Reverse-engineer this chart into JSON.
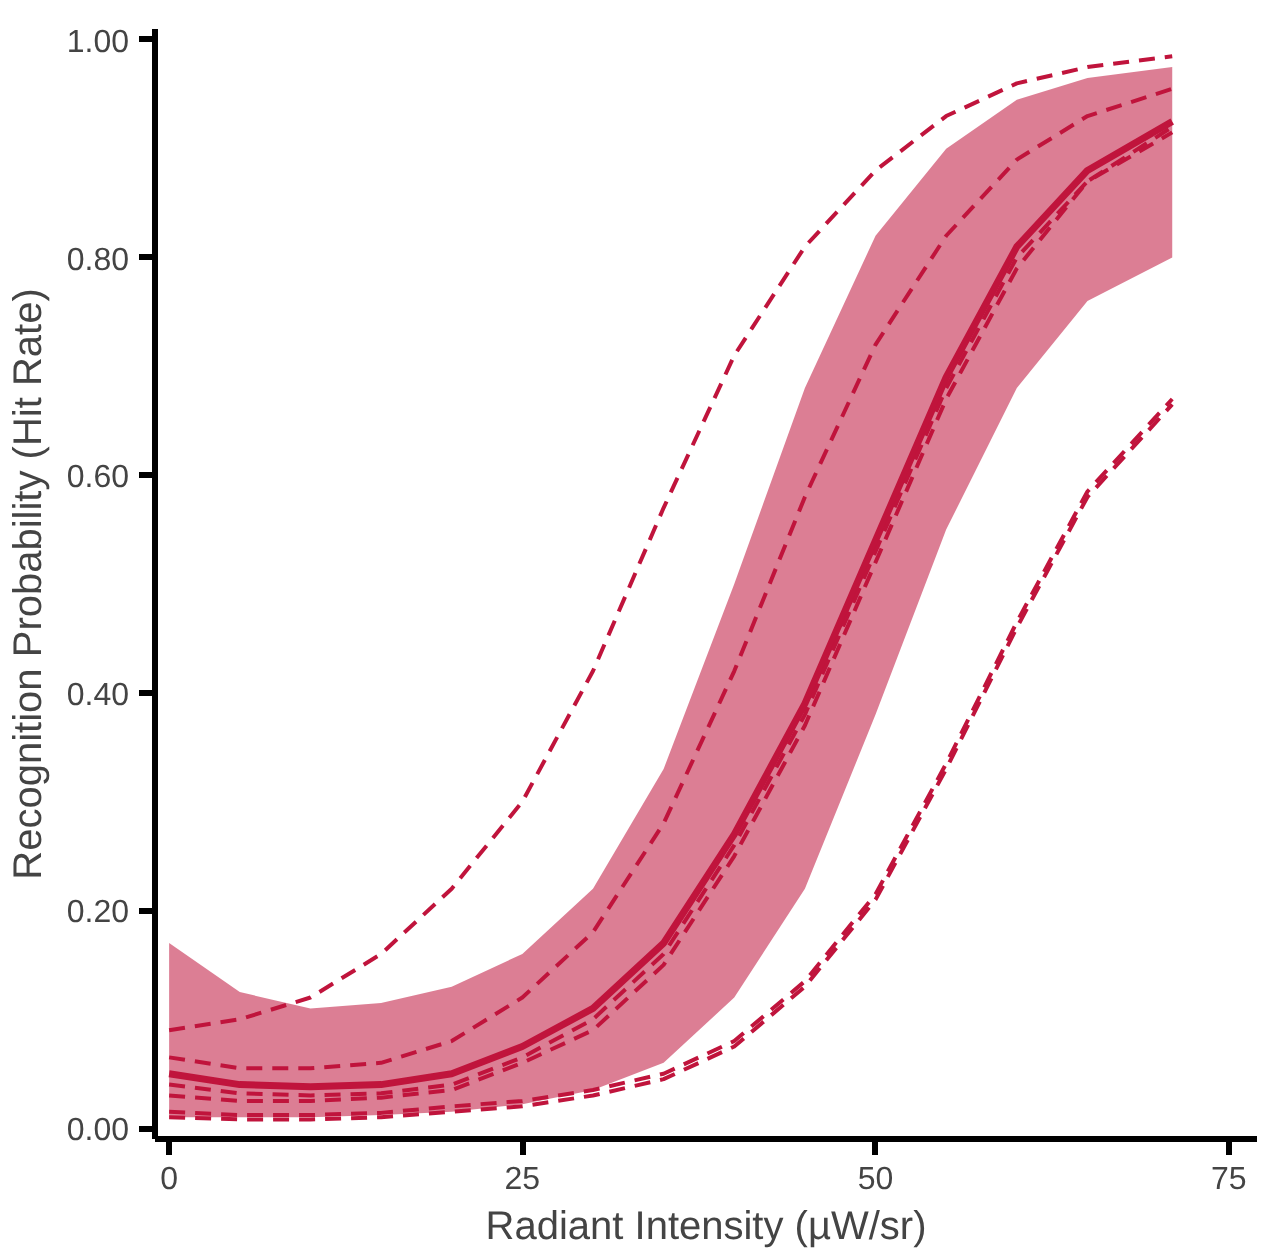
{
  "chart_data": {
    "type": "line",
    "xlabel": "Radiant Intensity (µW/sr)",
    "ylabel": "Recognition Probability (Hit Rate)",
    "x": [
      0,
      5,
      10,
      15,
      20,
      25,
      30,
      35,
      40,
      45,
      50,
      55,
      60,
      65,
      71
    ],
    "xlim": [
      -1,
      77
    ],
    "ylim": [
      -0.01,
      1.01
    ],
    "xticks": [
      0,
      25,
      50,
      75
    ],
    "yticks": [
      {
        "value": 0,
        "label": "0.00"
      },
      {
        "value": 0.2,
        "label": "0.20"
      },
      {
        "value": 0.4,
        "label": "0.40"
      },
      {
        "value": 0.6,
        "label": "0.60"
      },
      {
        "value": 0.8,
        "label": "0.80"
      },
      {
        "value": 1,
        "label": "1.00"
      }
    ],
    "grid": false,
    "series": [
      {
        "color": "#c0143c",
        "line_style": "solid",
        "values": [
          0.05,
          0.04,
          0.038,
          0.04,
          0.05,
          0.075,
          0.11,
          0.17,
          0.27,
          0.39,
          0.54,
          0.69,
          0.81,
          0.88,
          0.925
        ],
        "lower": [
          0.01,
          0.01,
          0.01,
          0.012,
          0.015,
          0.022,
          0.035,
          0.06,
          0.12,
          0.22,
          0.38,
          0.55,
          0.68,
          0.76,
          0.8
        ],
        "upper": [
          0.17,
          0.125,
          0.11,
          0.115,
          0.13,
          0.16,
          0.22,
          0.33,
          0.5,
          0.68,
          0.82,
          0.9,
          0.945,
          0.965,
          0.975
        ]
      },
      {
        "color": "#c0143c",
        "line_style": "dashed",
        "values": [
          0.09,
          0.1,
          0.12,
          0.16,
          0.22,
          0.3,
          0.42,
          0.57,
          0.71,
          0.81,
          0.88,
          0.93,
          0.96,
          0.975,
          0.985
        ]
      },
      {
        "color": "#c0143c",
        "line_style": "dashed",
        "values": [
          0.065,
          0.055,
          0.055,
          0.06,
          0.08,
          0.12,
          0.18,
          0.28,
          0.42,
          0.58,
          0.72,
          0.82,
          0.89,
          0.93,
          0.955
        ]
      },
      {
        "color": "#c0143c",
        "line_style": "dashed",
        "values": [
          0.04,
          0.032,
          0.03,
          0.032,
          0.04,
          0.065,
          0.1,
          0.16,
          0.26,
          0.38,
          0.53,
          0.68,
          0.8,
          0.87,
          0.915
        ]
      },
      {
        "color": "#c0143c",
        "line_style": "dashed",
        "values": [
          0.03,
          0.025,
          0.025,
          0.028,
          0.035,
          0.06,
          0.09,
          0.15,
          0.25,
          0.37,
          0.52,
          0.67,
          0.79,
          0.87,
          0.92
        ]
      },
      {
        "color": "#c0143c",
        "line_style": "dashed",
        "values": [
          0.01,
          0.008,
          0.008,
          0.01,
          0.015,
          0.02,
          0.03,
          0.045,
          0.075,
          0.13,
          0.21,
          0.33,
          0.46,
          0.58,
          0.665
        ]
      },
      {
        "color": "#c0143c",
        "line_style": "dashed",
        "values": [
          0.015,
          0.012,
          0.012,
          0.014,
          0.02,
          0.025,
          0.035,
          0.05,
          0.08,
          0.135,
          0.215,
          0.335,
          0.465,
          0.585,
          0.67
        ]
      }
    ]
  }
}
